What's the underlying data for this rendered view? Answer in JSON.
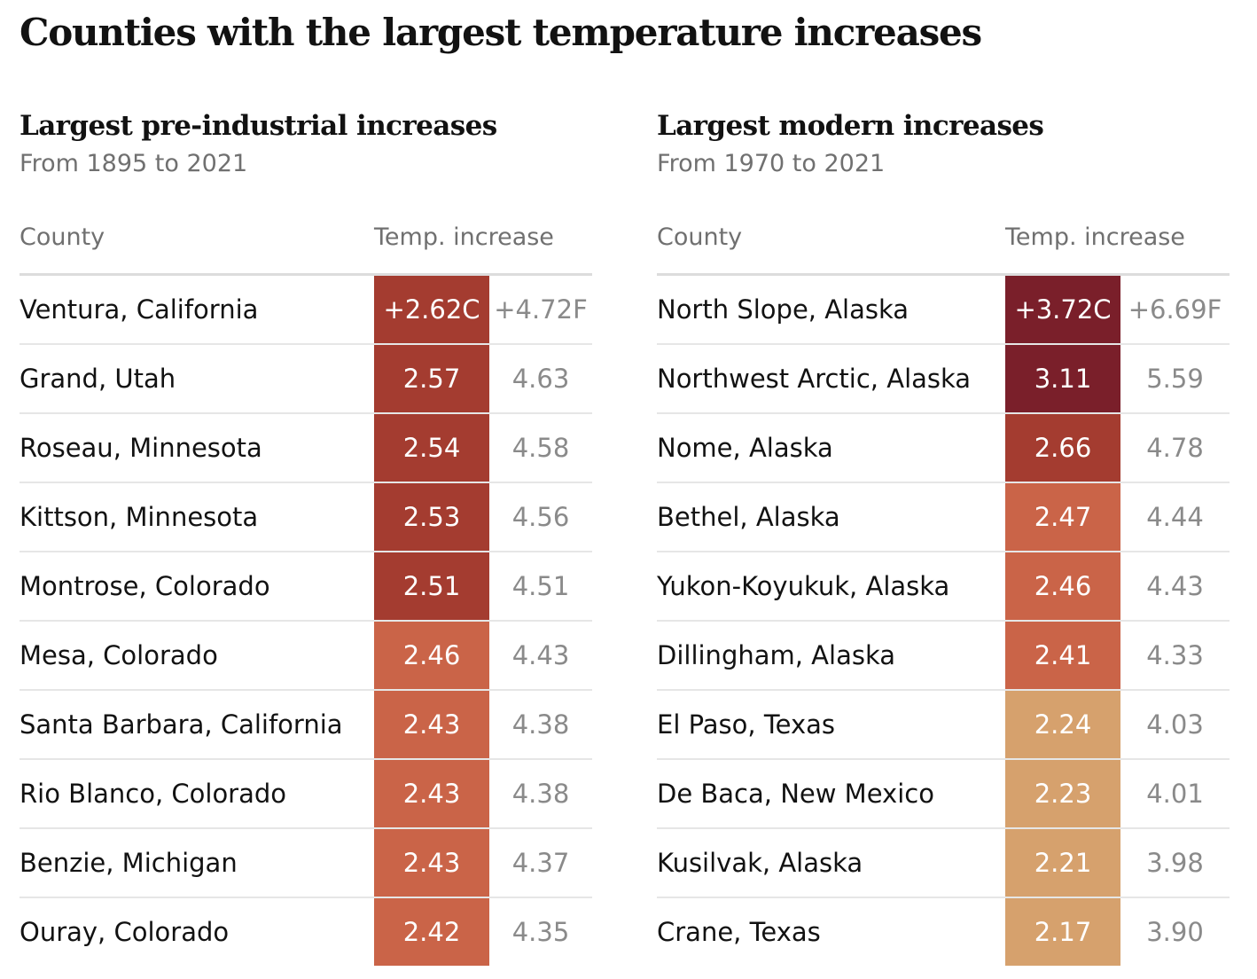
{
  "title": "Counties with the largest temperature increases",
  "chart_data": [
    {
      "type": "table",
      "title": "Largest pre-industrial increases",
      "subtitle": "From 1895 to 2021",
      "columns": [
        "County",
        "Temp. increase"
      ],
      "rows": [
        {
          "county": "Ventura, California",
          "celsius": "+2.62C",
          "fahrenheit": "+4.72F",
          "color": "#a43c30"
        },
        {
          "county": "Grand, Utah",
          "celsius": "2.57",
          "fahrenheit": "4.63",
          "color": "#a43c30"
        },
        {
          "county": "Roseau, Minnesota",
          "celsius": "2.54",
          "fahrenheit": "4.58",
          "color": "#a43c30"
        },
        {
          "county": "Kittson, Minnesota",
          "celsius": "2.53",
          "fahrenheit": "4.56",
          "color": "#a43c30"
        },
        {
          "county": "Montrose, Colorado",
          "celsius": "2.51",
          "fahrenheit": "4.51",
          "color": "#a43c30"
        },
        {
          "county": "Mesa, Colorado",
          "celsius": "2.46",
          "fahrenheit": "4.43",
          "color": "#ca6448"
        },
        {
          "county": "Santa Barbara, California",
          "celsius": "2.43",
          "fahrenheit": "4.38",
          "color": "#ca6448"
        },
        {
          "county": "Rio Blanco, Colorado",
          "celsius": "2.43",
          "fahrenheit": "4.38",
          "color": "#ca6448"
        },
        {
          "county": "Benzie, Michigan",
          "celsius": "2.43",
          "fahrenheit": "4.37",
          "color": "#ca6448"
        },
        {
          "county": "Ouray, Colorado",
          "celsius": "2.42",
          "fahrenheit": "4.35",
          "color": "#ca6448"
        }
      ]
    },
    {
      "type": "table",
      "title": "Largest modern increases",
      "subtitle": "From 1970 to 2021",
      "columns": [
        "County",
        "Temp. increase"
      ],
      "rows": [
        {
          "county": "North Slope, Alaska",
          "celsius": "+3.72C",
          "fahrenheit": "+6.69F",
          "color": "#7a1f2a"
        },
        {
          "county": "Northwest Arctic, Alaska",
          "celsius": "3.11",
          "fahrenheit": "5.59",
          "color": "#7a1f2a"
        },
        {
          "county": "Nome, Alaska",
          "celsius": "2.66",
          "fahrenheit": "4.78",
          "color": "#a43c30"
        },
        {
          "county": "Bethel, Alaska",
          "celsius": "2.47",
          "fahrenheit": "4.44",
          "color": "#ca6448"
        },
        {
          "county": "Yukon-Koyukuk, Alaska",
          "celsius": "2.46",
          "fahrenheit": "4.43",
          "color": "#ca6448"
        },
        {
          "county": "Dillingham, Alaska",
          "celsius": "2.41",
          "fahrenheit": "4.33",
          "color": "#ca6448"
        },
        {
          "county": "El Paso, Texas",
          "celsius": "2.24",
          "fahrenheit": "4.03",
          "color": "#d6a16d"
        },
        {
          "county": "De Baca, New Mexico",
          "celsius": "2.23",
          "fahrenheit": "4.01",
          "color": "#d6a16d"
        },
        {
          "county": "Kusilvak, Alaska",
          "celsius": "2.21",
          "fahrenheit": "3.98",
          "color": "#d6a16d"
        },
        {
          "county": "Crane, Texas",
          "celsius": "2.17",
          "fahrenheit": "3.90",
          "color": "#d6a16d"
        }
      ]
    }
  ]
}
